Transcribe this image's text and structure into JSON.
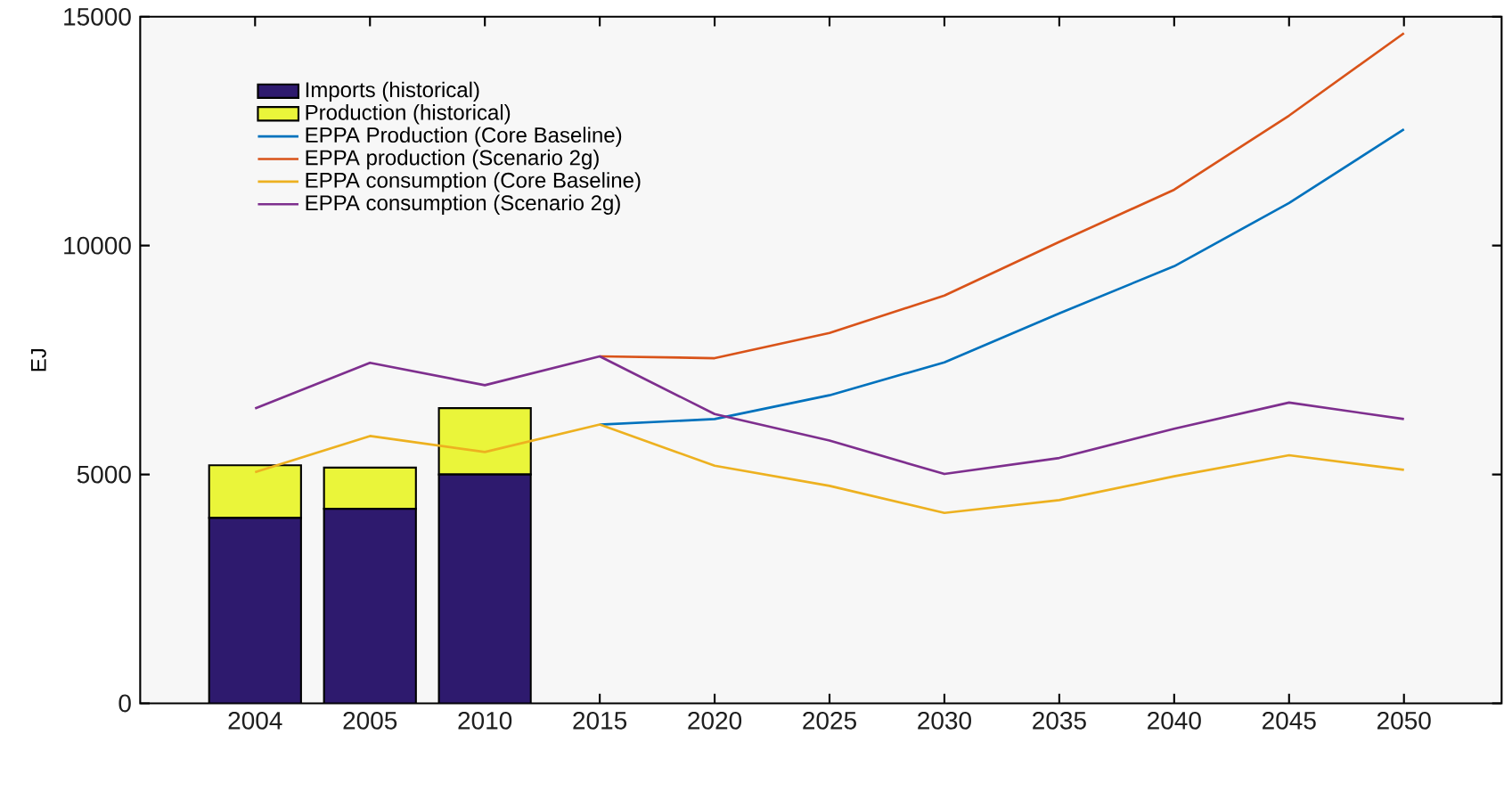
{
  "chart_data": {
    "type": "bar",
    "stacked": true,
    "ylabel": "EJ",
    "categories": [
      "2004",
      "2005",
      "2010",
      "2015",
      "2020",
      "2025",
      "2030",
      "2035",
      "2040",
      "2045",
      "2050"
    ],
    "series": [
      {
        "name": "Imports (historical)",
        "color": "#2e1a6e",
        "values": [
          4050,
          4250,
          5000,
          null,
          null,
          null,
          null,
          null,
          null,
          null,
          null
        ]
      },
      {
        "name": "Production (historical)",
        "color": "#eaf53a",
        "values": [
          1150,
          900,
          1450,
          null,
          null,
          null,
          null,
          null,
          null,
          null,
          null
        ]
      },
      {
        "name": "EPPA Production (Core Baseline)",
        "type": "line",
        "color": "#0072bd",
        "values": [
          null,
          null,
          null,
          6090,
          6210,
          6730,
          7450,
          8520,
          9550,
          10930,
          12540
        ]
      },
      {
        "name": "EPPA production (Scenario 2g)",
        "type": "line",
        "color": "#d95319",
        "values": [
          null,
          null,
          null,
          7580,
          7540,
          8090,
          8910,
          10080,
          11220,
          12840,
          14640
        ]
      },
      {
        "name": "EPPA consumption (Core Baseline)",
        "type": "line",
        "color": "#edb120",
        "values": [
          5050,
          5840,
          5490,
          6090,
          5190,
          4750,
          4160,
          4440,
          4960,
          5420,
          5100
        ]
      },
      {
        "name": "EPPA consumption (Scenario 2g)",
        "type": "line",
        "color": "#7e2f8e",
        "values": [
          6440,
          7440,
          6950,
          7580,
          6320,
          5740,
          5010,
          5360,
          6000,
          6570,
          6210
        ]
      }
    ],
    "ylim": [
      0,
      15000
    ],
    "yticks": [
      0,
      5000,
      10000,
      15000
    ],
    "grid": false,
    "legend": "top left",
    "marker": "none",
    "line_style": "solid"
  }
}
